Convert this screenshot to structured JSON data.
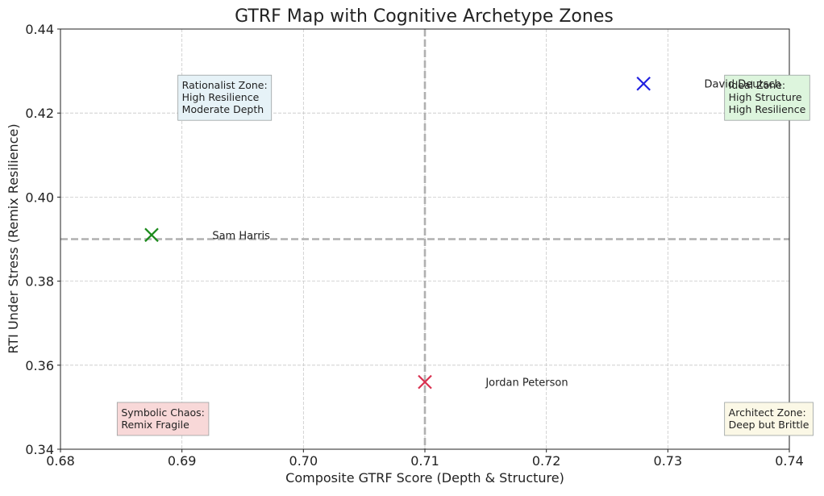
{
  "chart_data": {
    "type": "scatter",
    "title": "GTRF Map with Cognitive Archetype Zones",
    "xlabel": "Composite GTRF Score (Depth & Structure)",
    "ylabel": "RTI Under Stress (Remix Resilience)",
    "xlim": [
      0.68,
      0.74
    ],
    "ylim": [
      0.34,
      0.44
    ],
    "x_ticks": [
      "0.68",
      "0.69",
      "0.70",
      "0.71",
      "0.72",
      "0.73",
      "0.74"
    ],
    "y_ticks": [
      "0.34",
      "0.36",
      "0.38",
      "0.40",
      "0.42",
      "0.44"
    ],
    "grid": true,
    "marker": "x",
    "points": [
      {
        "label": "David Deutsch",
        "x": 0.728,
        "y": 0.427,
        "color": "#1f1fe0"
      },
      {
        "label": "Sam Harris",
        "x": 0.6875,
        "y": 0.391,
        "color": "#1a8a1a"
      },
      {
        "label": "Jordan Peterson",
        "x": 0.71,
        "y": 0.356,
        "color": "#d9304f"
      }
    ],
    "reference_lines": {
      "x": 0.71,
      "y": 0.39,
      "style": "dashed"
    },
    "zones": [
      {
        "lines": [
          "Rationalist Zone:",
          "High Resilience",
          "Moderate Depth"
        ],
        "x": 0.69,
        "y": 0.42,
        "fill": "#e6f2f7"
      },
      {
        "lines": [
          "Ideal Zone:",
          "High Structure",
          "High Resilience"
        ],
        "x": 0.735,
        "y": 0.42,
        "fill": "#ddf5dd"
      },
      {
        "lines": [
          "Symbolic Chaos:",
          "Remix Fragile"
        ],
        "x": 0.685,
        "y": 0.345,
        "fill": "#f8d8d8"
      },
      {
        "lines": [
          "Architect Zone:",
          "Deep but Brittle"
        ],
        "x": 0.735,
        "y": 0.345,
        "fill": "#fbf8e6"
      }
    ]
  }
}
